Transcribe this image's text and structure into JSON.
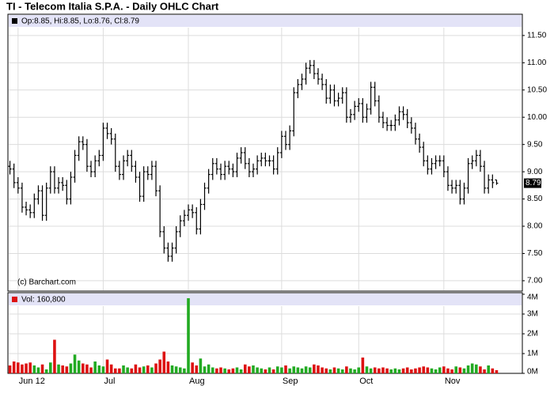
{
  "chart_data": {
    "type": "ohlc",
    "title": "TI - Telecom Italia S.P.A. - Daily OHLC Chart",
    "ohlc_legend": "Op:8.85, Hi:8.85, Lo:8.76, Cl:8.79",
    "volume_legend": "Vol: 160,800",
    "watermark": "(c) Barchart.com",
    "color": "#000000",
    "grid": true,
    "categories": [
      null,
      null,
      "Jun 12",
      null,
      null,
      null,
      null,
      null,
      null,
      null,
      null,
      null,
      null,
      null,
      null,
      null,
      null,
      null,
      null,
      null,
      null,
      null,
      null,
      "Jul",
      null,
      null,
      null,
      null,
      null,
      null,
      null,
      null,
      null,
      null,
      null,
      null,
      null,
      null,
      null,
      null,
      null,
      null,
      null,
      null,
      "Aug",
      null,
      null,
      null,
      null,
      null,
      null,
      null,
      null,
      null,
      null,
      null,
      null,
      null,
      null,
      null,
      null,
      null,
      null,
      null,
      null,
      null,
      null,
      "Sep",
      null,
      null,
      null,
      null,
      null,
      null,
      null,
      null,
      null,
      null,
      null,
      null,
      null,
      null,
      null,
      null,
      null,
      null,
      "Oct",
      null,
      null,
      null,
      null,
      null,
      null,
      null,
      null,
      null,
      null,
      null,
      null,
      null,
      null,
      null,
      null,
      null,
      null,
      null,
      null,
      "Nov",
      null,
      null,
      null,
      null,
      null,
      null,
      null,
      null,
      null,
      null,
      null,
      null,
      null
    ],
    "open": [
      9.1,
      9.05,
      8.8,
      8.7,
      8.35,
      8.3,
      8.25,
      8.5,
      8.65,
      8.2,
      8.7,
      9.0,
      8.7,
      8.8,
      8.75,
      8.5,
      8.9,
      9.3,
      9.55,
      9.5,
      9.1,
      9.0,
      9.2,
      9.3,
      9.8,
      9.7,
      9.6,
      9.1,
      8.95,
      9.2,
      9.3,
      9.1,
      8.9,
      8.55,
      9.0,
      8.95,
      9.1,
      8.65,
      7.9,
      7.6,
      7.45,
      7.6,
      7.9,
      8.1,
      8.2,
      8.3,
      8.25,
      7.95,
      8.4,
      8.7,
      8.95,
      9.15,
      9.05,
      8.95,
      9.1,
      9.05,
      9.0,
      9.25,
      9.35,
      9.15,
      9.0,
      9.05,
      9.2,
      9.25,
      9.2,
      9.2,
      9.05,
      9.35,
      9.65,
      9.5,
      9.75,
      10.45,
      10.6,
      10.7,
      10.9,
      10.95,
      10.8,
      10.7,
      10.6,
      10.35,
      10.5,
      10.3,
      10.35,
      10.45,
      10.0,
      10.05,
      10.2,
      10.25,
      10.0,
      10.15,
      10.55,
      10.3,
      10.0,
      9.9,
      9.85,
      9.85,
      9.95,
      10.1,
      10.05,
      9.9,
      9.8,
      9.6,
      9.45,
      9.2,
      9.05,
      9.15,
      9.2,
      9.2,
      9.0,
      8.75,
      8.7,
      8.75,
      8.5,
      8.7,
      9.15,
      9.2,
      9.3,
      9.1,
      8.7,
      8.85,
      8.85
    ],
    "high": [
      9.2,
      9.15,
      8.9,
      8.8,
      8.45,
      8.4,
      8.6,
      8.75,
      8.75,
      8.8,
      9.1,
      9.1,
      8.9,
      8.9,
      8.85,
      9.0,
      9.4,
      9.65,
      9.65,
      9.6,
      9.2,
      9.3,
      9.4,
      9.9,
      9.9,
      9.8,
      9.7,
      9.2,
      9.3,
      9.4,
      9.4,
      9.2,
      9.0,
      9.1,
      9.1,
      9.2,
      9.2,
      8.75,
      8.0,
      7.7,
      7.7,
      8.0,
      8.2,
      8.3,
      8.4,
      8.4,
      8.35,
      8.5,
      8.8,
      9.05,
      9.25,
      9.25,
      9.15,
      9.2,
      9.2,
      9.15,
      9.35,
      9.45,
      9.45,
      9.25,
      9.15,
      9.3,
      9.35,
      9.35,
      9.3,
      9.3,
      9.45,
      9.75,
      9.75,
      9.85,
      10.55,
      10.7,
      10.8,
      11.0,
      11.05,
      11.05,
      10.9,
      10.8,
      10.7,
      10.6,
      10.6,
      10.45,
      10.55,
      10.55,
      10.15,
      10.3,
      10.35,
      10.35,
      10.25,
      10.65,
      10.65,
      10.4,
      10.1,
      10.0,
      9.95,
      10.05,
      10.2,
      10.2,
      10.15,
      10.0,
      9.9,
      9.7,
      9.55,
      9.3,
      9.25,
      9.3,
      9.3,
      9.3,
      9.1,
      8.85,
      8.85,
      8.85,
      8.8,
      9.25,
      9.3,
      9.4,
      9.4,
      9.2,
      8.95,
      8.95,
      8.85
    ],
    "low": [
      8.95,
      8.7,
      8.6,
      8.25,
      8.2,
      8.15,
      8.15,
      8.4,
      8.1,
      8.1,
      8.6,
      8.6,
      8.6,
      8.65,
      8.4,
      8.4,
      8.8,
      9.2,
      9.4,
      9.0,
      8.9,
      8.9,
      9.1,
      9.2,
      9.6,
      9.5,
      9.0,
      8.85,
      8.85,
      9.1,
      9.0,
      8.8,
      8.45,
      8.45,
      8.85,
      8.85,
      8.55,
      7.8,
      7.5,
      7.35,
      7.35,
      7.5,
      7.8,
      8.0,
      8.1,
      8.15,
      7.85,
      7.85,
      8.3,
      8.6,
      8.85,
      8.95,
      8.85,
      8.85,
      8.95,
      8.9,
      8.9,
      9.15,
      9.05,
      8.9,
      8.9,
      8.95,
      9.1,
      9.1,
      9.1,
      8.95,
      8.95,
      9.25,
      9.4,
      9.4,
      9.65,
      10.35,
      10.5,
      10.6,
      10.8,
      10.7,
      10.6,
      10.5,
      10.25,
      10.25,
      10.2,
      10.2,
      10.25,
      9.9,
      9.9,
      9.95,
      10.1,
      9.9,
      9.9,
      10.05,
      10.2,
      9.9,
      9.8,
      9.75,
      9.75,
      9.75,
      9.85,
      9.95,
      9.8,
      9.7,
      9.5,
      9.35,
      9.1,
      8.95,
      8.95,
      9.05,
      9.1,
      8.9,
      8.65,
      8.6,
      8.6,
      8.4,
      8.4,
      8.6,
      9.05,
      9.1,
      9.0,
      8.6,
      8.6,
      8.7,
      8.76
    ],
    "close": [
      9.05,
      8.8,
      8.7,
      8.35,
      8.3,
      8.25,
      8.5,
      8.65,
      8.2,
      8.7,
      9.0,
      8.7,
      8.8,
      8.75,
      8.5,
      8.9,
      9.3,
      9.55,
      9.5,
      9.1,
      9.0,
      9.2,
      9.3,
      9.8,
      9.7,
      9.6,
      9.1,
      8.95,
      9.2,
      9.3,
      9.1,
      8.9,
      8.55,
      9.0,
      8.95,
      9.1,
      8.65,
      7.9,
      7.6,
      7.45,
      7.6,
      7.9,
      8.1,
      8.2,
      8.3,
      8.25,
      7.95,
      8.4,
      8.7,
      8.95,
      9.15,
      9.05,
      8.95,
      9.1,
      9.05,
      9.0,
      9.25,
      9.35,
      9.15,
      9.0,
      9.05,
      9.2,
      9.25,
      9.2,
      9.2,
      9.05,
      9.35,
      9.65,
      9.5,
      9.75,
      10.45,
      10.6,
      10.7,
      10.9,
      10.95,
      10.8,
      10.7,
      10.6,
      10.35,
      10.5,
      10.3,
      10.35,
      10.45,
      10.0,
      10.05,
      10.2,
      10.25,
      10.0,
      10.15,
      10.55,
      10.3,
      10.0,
      9.9,
      9.85,
      9.85,
      9.95,
      10.1,
      10.05,
      9.9,
      9.8,
      9.6,
      9.45,
      9.2,
      9.05,
      9.15,
      9.2,
      9.2,
      9.0,
      8.75,
      8.7,
      8.75,
      8.5,
      8.7,
      9.15,
      9.2,
      9.3,
      9.1,
      8.7,
      8.85,
      8.8,
      8.79
    ],
    "ylim": [
      6.81,
      11.89
    ],
    "yticks": [
      {
        "value": 7,
        "label": "7.00"
      },
      {
        "value": 7.5,
        "label": "7.50"
      },
      {
        "value": 8,
        "label": "8.00"
      },
      {
        "value": 8.5,
        "label": "8.50"
      },
      {
        "value": 9,
        "label": "9.00"
      },
      {
        "value": 9.5,
        "label": "9.50"
      },
      {
        "value": 10,
        "label": "10.00"
      },
      {
        "value": 10.5,
        "label": "10.50"
      },
      {
        "value": 11,
        "label": "11.00"
      },
      {
        "value": 11.5,
        "label": "11.50"
      }
    ],
    "volume": {
      "up_color": "#22aa22",
      "down_color": "#dd1111",
      "ylim": [
        0,
        4000000
      ],
      "yticks": [
        {
          "value": 0,
          "label": "0M"
        },
        {
          "value": 1000000,
          "label": "1M"
        },
        {
          "value": 2000000,
          "label": "2M"
        },
        {
          "value": 3000000,
          "label": "3M"
        },
        {
          "value": 4000000,
          "label": "4M"
        }
      ],
      "values": [
        400000,
        600000,
        550000,
        450000,
        500000,
        550000,
        400000,
        300000,
        450000,
        200000,
        550000,
        1700000,
        450000,
        400000,
        350000,
        500000,
        950000,
        650000,
        500000,
        450000,
        300000,
        600000,
        400000,
        350000,
        700000,
        450000,
        250000,
        250000,
        400000,
        300000,
        250000,
        450000,
        300000,
        350000,
        400000,
        300000,
        500000,
        700000,
        1100000,
        600000,
        400000,
        350000,
        300000,
        250000,
        3800000,
        550000,
        400000,
        750000,
        350000,
        450000,
        300000,
        250000,
        300000,
        250000,
        200000,
        250000,
        300000,
        200000,
        450000,
        350000,
        400000,
        300000,
        250000,
        200000,
        300000,
        200000,
        350000,
        300000,
        400000,
        250000,
        350000,
        300000,
        250000,
        350000,
        300000,
        450000,
        400000,
        300000,
        250000,
        200000,
        300000,
        250000,
        200000,
        350000,
        250000,
        200000,
        300000,
        800000,
        350000,
        250000,
        300000,
        250000,
        300000,
        250000,
        200000,
        250000,
        200000,
        250000,
        300000,
        200000,
        250000,
        300000,
        350000,
        300000,
        250000,
        200000,
        300000,
        350000,
        250000,
        200000,
        350000,
        300000,
        250000,
        400000,
        500000,
        450000,
        350000,
        200000,
        400000,
        250000,
        160800
      ]
    }
  }
}
